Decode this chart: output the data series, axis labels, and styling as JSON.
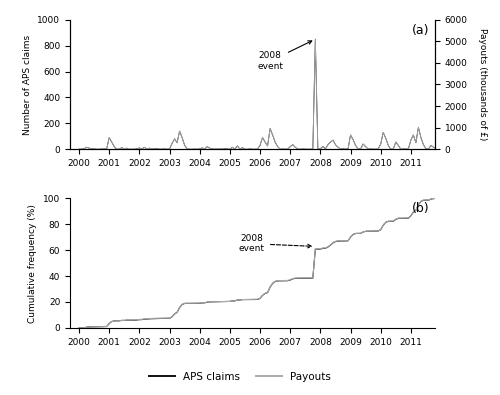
{
  "title_a": "(a)",
  "title_b": "(b)",
  "ylabel_a1": "Number of APS claims",
  "ylabel_a2": "Payouts (thousands of £)",
  "ylabel_b": "Cumulative frequency (%)",
  "legend_labels": [
    "APS claims",
    "Payouts"
  ],
  "claims_color": "#111111",
  "payouts_color": "#aaaaaa",
  "background_color": "#ffffff",
  "ylim_a1": [
    0,
    1000
  ],
  "ylim_a2": [
    0,
    6000
  ],
  "ylim_b": [
    0,
    100
  ],
  "annotation_a_text": "2008\nevent",
  "annotation_b_text": "2008\nevent",
  "years": [
    2000,
    2001,
    2002,
    2003,
    2004,
    2005,
    2006,
    2007,
    2008,
    2009,
    2010,
    2011
  ]
}
